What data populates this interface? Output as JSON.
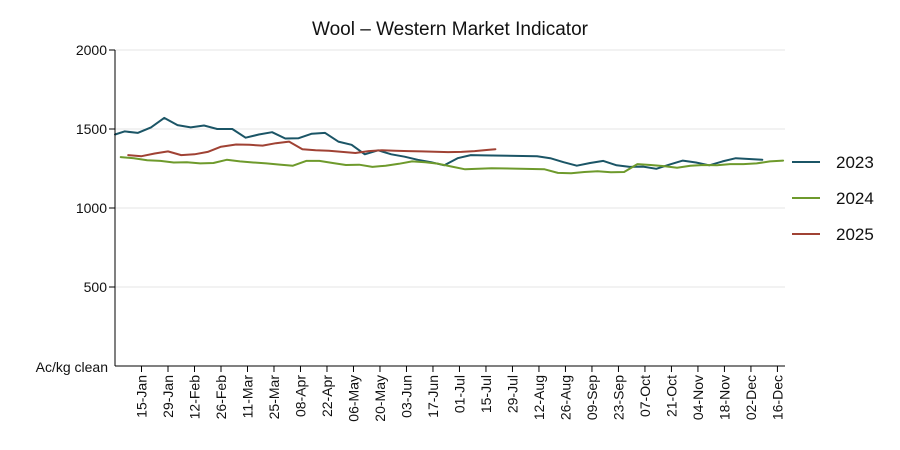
{
  "chart_data": {
    "type": "line",
    "title": "Wool – Western Market Indicator",
    "ylabel": "Ac/kg clean",
    "xlabel": "",
    "ylim": [
      0,
      2000
    ],
    "yticks": [
      500,
      1000,
      1500,
      2000
    ],
    "grid": "horizontal",
    "legend_position": "right",
    "xlim": [
      "2000-01-01",
      "2000-12-20"
    ],
    "xticks": [
      {
        "label": "15-Jan",
        "date": "2000-01-15"
      },
      {
        "label": "29-Jan",
        "date": "2000-01-29"
      },
      {
        "label": "12-Feb",
        "date": "2000-02-12"
      },
      {
        "label": "26-Feb",
        "date": "2000-02-26"
      },
      {
        "label": "11-Mar",
        "date": "2000-03-11"
      },
      {
        "label": "25-Mar",
        "date": "2000-03-25"
      },
      {
        "label": "08-Apr",
        "date": "2000-04-08"
      },
      {
        "label": "22-Apr",
        "date": "2000-04-22"
      },
      {
        "label": "06-May",
        "date": "2000-05-06"
      },
      {
        "label": "20-May",
        "date": "2000-05-20"
      },
      {
        "label": "03-Jun",
        "date": "2000-06-03"
      },
      {
        "label": "17-Jun",
        "date": "2000-06-17"
      },
      {
        "label": "01-Jul",
        "date": "2000-07-01"
      },
      {
        "label": "15-Jul",
        "date": "2000-07-15"
      },
      {
        "label": "29-Jul",
        "date": "2000-07-29"
      },
      {
        "label": "12-Aug",
        "date": "2000-08-12"
      },
      {
        "label": "26-Aug",
        "date": "2000-08-26"
      },
      {
        "label": "09-Sep",
        "date": "2000-09-09"
      },
      {
        "label": "23-Sep",
        "date": "2000-09-23"
      },
      {
        "label": "07-Oct",
        "date": "2000-10-07"
      },
      {
        "label": "21-Oct",
        "date": "2000-10-21"
      },
      {
        "label": "04-Nov",
        "date": "2000-11-04"
      },
      {
        "label": "18-Nov",
        "date": "2000-11-18"
      },
      {
        "label": "02-Dec",
        "date": "2000-12-02"
      },
      {
        "label": "16-Dec",
        "date": "2000-12-16"
      }
    ],
    "series": [
      {
        "name": "2023",
        "color": "#1b5566",
        "points": [
          [
            "2000-01-01",
            1465
          ],
          [
            "2000-01-06",
            1485
          ],
          [
            "2000-01-13",
            1475
          ],
          [
            "2000-01-20",
            1510
          ],
          [
            "2000-01-27",
            1570
          ],
          [
            "2000-02-03",
            1525
          ],
          [
            "2000-02-10",
            1510
          ],
          [
            "2000-02-17",
            1522
          ],
          [
            "2000-02-24",
            1500
          ],
          [
            "2000-03-03",
            1500
          ],
          [
            "2000-03-10",
            1445
          ],
          [
            "2000-03-17",
            1465
          ],
          [
            "2000-03-24",
            1480
          ],
          [
            "2000-03-31",
            1440
          ],
          [
            "2000-04-07",
            1442
          ],
          [
            "2000-04-14",
            1470
          ],
          [
            "2000-04-21",
            1475
          ],
          [
            "2000-04-28",
            1420
          ],
          [
            "2000-05-05",
            1400
          ],
          [
            "2000-05-12",
            1340
          ],
          [
            "2000-05-19",
            1365
          ],
          [
            "2000-05-26",
            1340
          ],
          [
            "2000-06-02",
            1325
          ],
          [
            "2000-06-09",
            1305
          ],
          [
            "2000-06-16",
            1290
          ],
          [
            "2000-06-23",
            1270
          ],
          [
            "2000-06-30",
            1315
          ],
          [
            "2000-07-07",
            1335
          ],
          [
            "2000-07-14",
            1333
          ],
          [
            "2000-08-11",
            1328
          ],
          [
            "2000-08-18",
            1315
          ],
          [
            "2000-08-25",
            1290
          ],
          [
            "2000-09-01",
            1268
          ],
          [
            "2000-09-08",
            1285
          ],
          [
            "2000-09-15",
            1298
          ],
          [
            "2000-09-22",
            1270
          ],
          [
            "2000-09-29",
            1260
          ],
          [
            "2000-10-06",
            1262
          ],
          [
            "2000-10-13",
            1248
          ],
          [
            "2000-10-20",
            1275
          ],
          [
            "2000-10-27",
            1300
          ],
          [
            "2000-11-03",
            1288
          ],
          [
            "2000-11-10",
            1270
          ],
          [
            "2000-11-17",
            1295
          ],
          [
            "2000-11-24",
            1315
          ],
          [
            "2000-12-01",
            1310
          ],
          [
            "2000-12-08",
            1305
          ]
        ]
      },
      {
        "name": "2024",
        "color": "#6e9a2c",
        "points": [
          [
            "2000-01-04",
            1322
          ],
          [
            "2000-01-11",
            1315
          ],
          [
            "2000-01-18",
            1302
          ],
          [
            "2000-01-25",
            1298
          ],
          [
            "2000-02-01",
            1288
          ],
          [
            "2000-02-08",
            1290
          ],
          [
            "2000-02-15",
            1282
          ],
          [
            "2000-02-22",
            1285
          ],
          [
            "2000-02-29",
            1305
          ],
          [
            "2000-03-07",
            1295
          ],
          [
            "2000-03-14",
            1288
          ],
          [
            "2000-03-21",
            1282
          ],
          [
            "2000-03-28",
            1275
          ],
          [
            "2000-04-04",
            1268
          ],
          [
            "2000-04-11",
            1298
          ],
          [
            "2000-04-18",
            1298
          ],
          [
            "2000-04-25",
            1285
          ],
          [
            "2000-05-02",
            1272
          ],
          [
            "2000-05-09",
            1274
          ],
          [
            "2000-05-16",
            1260
          ],
          [
            "2000-05-23",
            1268
          ],
          [
            "2000-05-30",
            1280
          ],
          [
            "2000-06-06",
            1295
          ],
          [
            "2000-06-13",
            1290
          ],
          [
            "2000-06-20",
            1280
          ],
          [
            "2000-06-27",
            1262
          ],
          [
            "2000-07-04",
            1245
          ],
          [
            "2000-07-11",
            1248
          ],
          [
            "2000-07-18",
            1252
          ],
          [
            "2000-08-15",
            1245
          ],
          [
            "2000-08-22",
            1222
          ],
          [
            "2000-08-29",
            1220
          ],
          [
            "2000-09-05",
            1228
          ],
          [
            "2000-09-12",
            1232
          ],
          [
            "2000-09-19",
            1226
          ],
          [
            "2000-09-26",
            1228
          ],
          [
            "2000-10-03",
            1278
          ],
          [
            "2000-10-10",
            1272
          ],
          [
            "2000-10-17",
            1265
          ],
          [
            "2000-10-24",
            1255
          ],
          [
            "2000-10-31",
            1268
          ],
          [
            "2000-11-07",
            1272
          ],
          [
            "2000-11-14",
            1270
          ],
          [
            "2000-11-21",
            1278
          ],
          [
            "2000-11-28",
            1278
          ],
          [
            "2000-12-05",
            1282
          ],
          [
            "2000-12-12",
            1295
          ],
          [
            "2000-12-19",
            1300
          ]
        ]
      },
      {
        "name": "2025",
        "color": "#a04234",
        "points": [
          [
            "2000-01-08",
            1335
          ],
          [
            "2000-01-15",
            1328
          ],
          [
            "2000-01-22",
            1345
          ],
          [
            "2000-01-29",
            1358
          ],
          [
            "2000-02-05",
            1335
          ],
          [
            "2000-02-12",
            1340
          ],
          [
            "2000-02-19",
            1355
          ],
          [
            "2000-02-26",
            1388
          ],
          [
            "2000-03-05",
            1402
          ],
          [
            "2000-03-12",
            1400
          ],
          [
            "2000-03-19",
            1395
          ],
          [
            "2000-03-26",
            1410
          ],
          [
            "2000-04-02",
            1420
          ],
          [
            "2000-04-09",
            1372
          ],
          [
            "2000-04-16",
            1365
          ],
          [
            "2000-04-23",
            1362
          ],
          [
            "2000-04-30",
            1355
          ],
          [
            "2000-05-07",
            1348
          ],
          [
            "2000-05-14",
            1360
          ],
          [
            "2000-05-21",
            1365
          ],
          [
            "2000-05-28",
            1362
          ],
          [
            "2000-06-04",
            1360
          ],
          [
            "2000-06-11",
            1358
          ],
          [
            "2000-06-18",
            1356
          ],
          [
            "2000-06-25",
            1354
          ],
          [
            "2000-07-02",
            1355
          ],
          [
            "2000-07-09",
            1360
          ],
          [
            "2000-07-16",
            1368
          ],
          [
            "2000-07-20",
            1372
          ]
        ]
      }
    ]
  }
}
